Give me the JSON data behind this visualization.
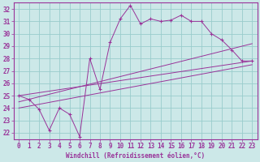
{
  "bg_color": "#cce8e8",
  "grid_color": "#99cccc",
  "line_color": "#993399",
  "xlabel": "Windchill (Refroidissement éolien,°C)",
  "xlim": [
    -0.5,
    23.5
  ],
  "ylim": [
    21.5,
    32.5
  ],
  "yticks": [
    22,
    23,
    24,
    25,
    26,
    27,
    28,
    29,
    30,
    31,
    32
  ],
  "xticks": [
    0,
    1,
    2,
    3,
    4,
    5,
    6,
    7,
    8,
    9,
    10,
    11,
    12,
    13,
    14,
    15,
    16,
    17,
    18,
    19,
    20,
    21,
    22,
    23
  ],
  "main_line_x": [
    0,
    1,
    2,
    3,
    4,
    5,
    6,
    7,
    8,
    9,
    10,
    11,
    12,
    13,
    14,
    15,
    16,
    17,
    18,
    19,
    20,
    21,
    22,
    23
  ],
  "main_line_y": [
    25.0,
    24.7,
    23.9,
    22.2,
    24.0,
    23.5,
    21.7,
    28.0,
    25.5,
    29.3,
    31.2,
    32.3,
    30.8,
    31.2,
    31.0,
    31.1,
    31.5,
    31.0,
    31.0,
    30.0,
    29.5,
    28.7,
    27.8,
    27.8
  ],
  "smooth_lines": [
    {
      "x": [
        0,
        23
      ],
      "y": [
        25.0,
        27.8
      ]
    },
    {
      "x": [
        0,
        23
      ],
      "y": [
        24.5,
        29.2
      ]
    },
    {
      "x": [
        0,
        23
      ],
      "y": [
        24.0,
        27.5
      ]
    }
  ],
  "tick_fontsize": 5.5,
  "xlabel_fontsize": 5.5
}
